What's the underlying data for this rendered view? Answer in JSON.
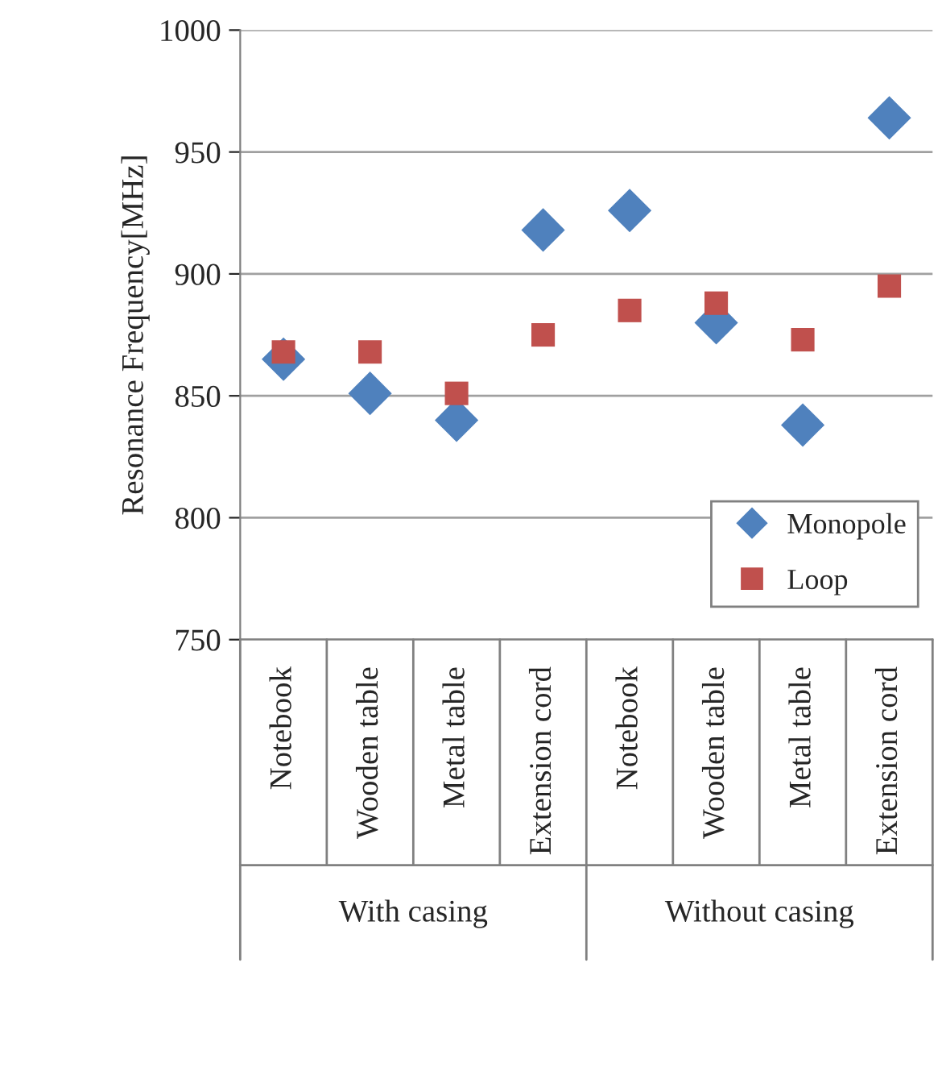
{
  "chart_data": {
    "type": "scatter",
    "ylabel": "Resonance Frequency[MHz]",
    "categories": [
      "Notebook",
      "Wooden table",
      "Metal table",
      "Extension cord",
      "Notebook",
      "Wooden table",
      "Metal table",
      "Extension cord"
    ],
    "series": [
      {
        "name": "Monopole",
        "color": "#4f81bd",
        "marker": "diamond",
        "values": [
          865,
          851,
          840,
          918,
          926,
          880,
          838,
          964
        ]
      },
      {
        "name": "Loop",
        "color": "#c0504d",
        "marker": "square",
        "values": [
          868,
          868,
          851,
          875,
          885,
          888,
          873,
          895
        ]
      }
    ],
    "ylim": [
      750,
      1000
    ],
    "yticks": [
      750,
      800,
      850,
      900,
      950,
      1000
    ],
    "grid": "y",
    "legend": "bottom right",
    "annotations": [
      "With casing",
      "Without casing"
    ]
  }
}
